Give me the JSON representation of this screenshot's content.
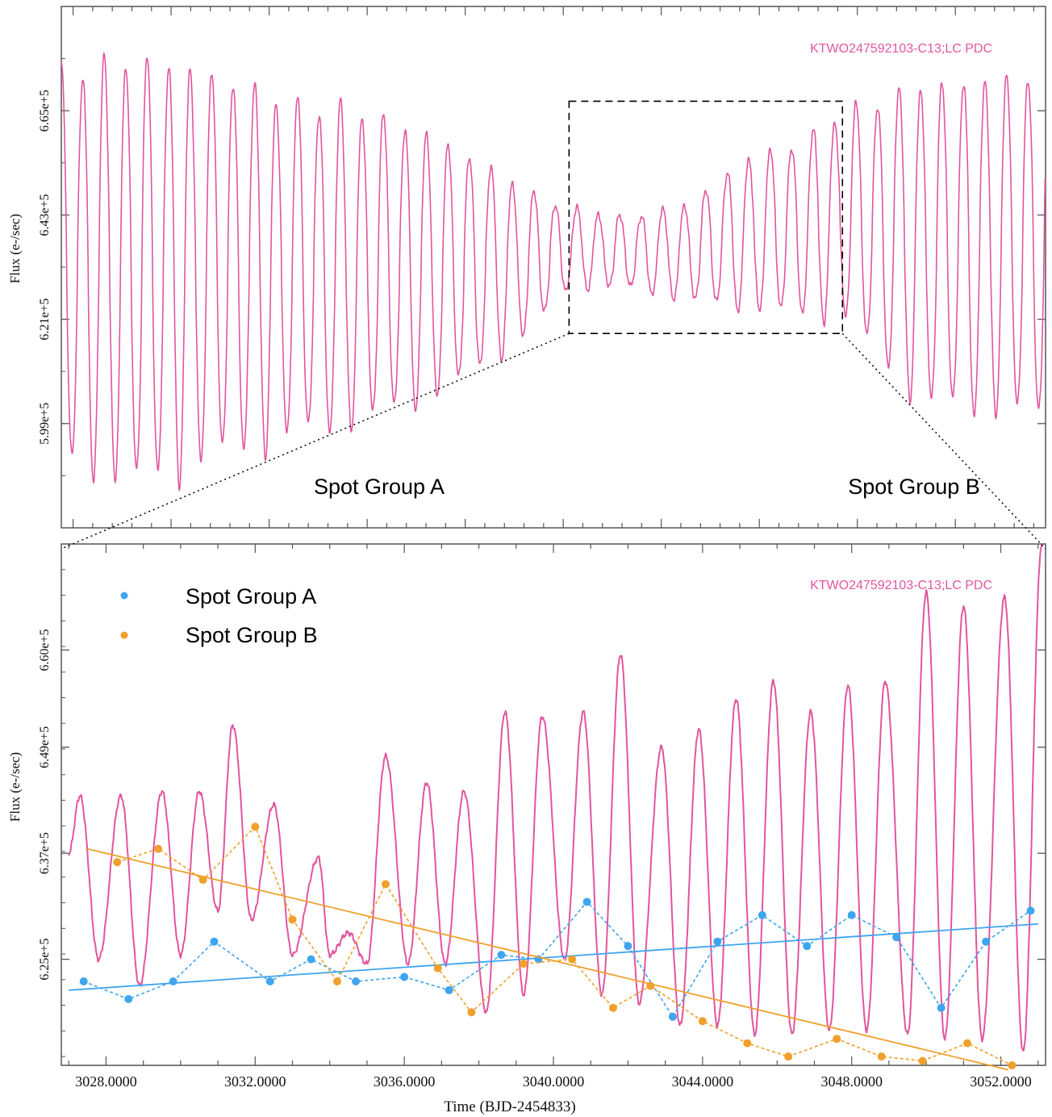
{
  "colors": {
    "lightcurve": "#e2559f",
    "group_a": "#3fa5ef",
    "group_b": "#f0a02c",
    "frame": "#555555",
    "guide": "#000000"
  },
  "top_panel": {
    "label": "KTWO247592103-C13;LC PDC",
    "ylabel": "Flux (e-/sec)",
    "yticks": [
      "6.65e+5",
      "6.43e+5",
      "6.21e+5",
      "5.99e+5"
    ],
    "annot_a": "Spot Group A",
    "annot_b": "Spot Group B"
  },
  "chart_data": [
    {
      "type": "line",
      "panel": "top",
      "title": "KTWO247592103-C13;LC PDC",
      "ylabel": "Flux (e-/sec)",
      "xlim": [
        3027.0,
        3052.2
      ],
      "ylim": [
        577000,
        687000
      ],
      "yticks": [
        665000,
        643000,
        621000,
        599000
      ],
      "annotations": [
        "Spot Group A",
        "Spot Group B"
      ],
      "series": [
        {
          "period": 0.55,
          "phase_offset": 3027.0,
          "envelope": [
            {
              "x": 3027.0,
              "peak": 676000,
              "trough": 587000
            },
            {
              "x": 3029.0,
              "peak": 680000,
              "trough": 582000
            },
            {
              "x": 3031.0,
              "peak": 676000,
              "trough": 588000
            },
            {
              "x": 3033.0,
              "peak": 669000,
              "trough": 593000
            },
            {
              "x": 3035.0,
              "peak": 667000,
              "trough": 597000
            },
            {
              "x": 3037.0,
              "peak": 660000,
              "trough": 604000
            },
            {
              "x": 3039.0,
              "peak": 649000,
              "trough": 617000
            },
            {
              "x": 3040.0,
              "peak": 645000,
              "trough": 627000
            },
            {
              "x": 3041.5,
              "peak": 643000,
              "trough": 627000
            },
            {
              "x": 3043.0,
              "peak": 646000,
              "trough": 624000
            },
            {
              "x": 3044.5,
              "peak": 656000,
              "trough": 622000
            },
            {
              "x": 3046.0,
              "peak": 660000,
              "trough": 620000
            },
            {
              "x": 3047.0,
              "peak": 666000,
              "trough": 620000
            },
            {
              "x": 3049.0,
              "peak": 673000,
              "trough": 600000
            },
            {
              "x": 3052.2,
              "peak": 676000,
              "trough": 597000
            }
          ]
        }
      ],
      "zoom_box": {
        "xlim": [
          3040.0,
          3047.0
        ],
        "ylim": [
          618000,
          667000
        ]
      }
    },
    {
      "type": "line",
      "panel": "bottom",
      "title": "KTWO247592103-C13;LC PDC",
      "xlabel": "Time (BJD-2454833)",
      "ylabel": "Flux (e-/sec)",
      "xlim": [
        3026.8,
        3053.2
      ],
      "ylim": [
        613000,
        672000
      ],
      "xticks": [
        3028,
        3032,
        3036,
        3040,
        3044,
        3048,
        3052
      ],
      "xtick_labels": [
        "3028.0000",
        "3032.0000",
        "3036.0000",
        "3040.0000",
        "3044.0000",
        "3048.0000",
        "3052.0000"
      ],
      "yticks": [
        660000,
        649000,
        637000,
        625000
      ],
      "ytick_labels": [
        "6.60e+5",
        "6.49e+5",
        "6.37e+5",
        "6.25e+5"
      ],
      "legend": {
        "placement": "top-left",
        "entries": [
          "Spot Group A",
          "Spot Group B"
        ]
      },
      "lightcurve": {
        "maxima": [
          {
            "x": 3027.3,
            "y": 643500
          },
          {
            "x": 3028.4,
            "y": 643500
          },
          {
            "x": 3029.5,
            "y": 644000
          },
          {
            "x": 3030.5,
            "y": 644000
          },
          {
            "x": 3031.4,
            "y": 651500
          },
          {
            "x": 3032.5,
            "y": 642500
          },
          {
            "x": 3033.7,
            "y": 636500
          },
          {
            "x": 3034.5,
            "y": 628000
          },
          {
            "x": 3035.5,
            "y": 648000
          },
          {
            "x": 3036.6,
            "y": 645000
          },
          {
            "x": 3037.6,
            "y": 644000
          },
          {
            "x": 3038.7,
            "y": 653000
          },
          {
            "x": 3039.7,
            "y": 652500
          },
          {
            "x": 3040.8,
            "y": 653000
          },
          {
            "x": 3041.8,
            "y": 659500
          },
          {
            "x": 3042.9,
            "y": 649000
          },
          {
            "x": 3043.9,
            "y": 651000
          },
          {
            "x": 3044.9,
            "y": 654500
          },
          {
            "x": 3045.9,
            "y": 656500
          },
          {
            "x": 3046.9,
            "y": 653000
          },
          {
            "x": 3047.9,
            "y": 656000
          },
          {
            "x": 3048.9,
            "y": 656500
          },
          {
            "x": 3050.0,
            "y": 666500
          },
          {
            "x": 3051.0,
            "y": 665000
          },
          {
            "x": 3052.1,
            "y": 666000
          },
          {
            "x": 3053.1,
            "y": 672000
          }
        ],
        "minima": [
          {
            "x": 3027.0,
            "y": 637000
          },
          {
            "x": 3027.8,
            "y": 625000
          },
          {
            "x": 3028.9,
            "y": 622000
          },
          {
            "x": 3030.0,
            "y": 625500
          },
          {
            "x": 3031.0,
            "y": 630500
          },
          {
            "x": 3031.9,
            "y": 629500
          },
          {
            "x": 3033.0,
            "y": 625500
          },
          {
            "x": 3034.0,
            "y": 625500
          },
          {
            "x": 3035.0,
            "y": 624500
          },
          {
            "x": 3036.1,
            "y": 624500
          },
          {
            "x": 3037.1,
            "y": 624500
          },
          {
            "x": 3038.2,
            "y": 619000
          },
          {
            "x": 3039.2,
            "y": 621000
          },
          {
            "x": 3040.3,
            "y": 625000
          },
          {
            "x": 3041.3,
            "y": 621000
          },
          {
            "x": 3042.3,
            "y": 620000
          },
          {
            "x": 3043.4,
            "y": 617500
          },
          {
            "x": 3044.4,
            "y": 617500
          },
          {
            "x": 3045.4,
            "y": 616500
          },
          {
            "x": 3046.4,
            "y": 616500
          },
          {
            "x": 3047.4,
            "y": 617000
          },
          {
            "x": 3048.4,
            "y": 617000
          },
          {
            "x": 3049.5,
            "y": 616500
          },
          {
            "x": 3050.5,
            "y": 616000
          },
          {
            "x": 3051.5,
            "y": 616000
          },
          {
            "x": 3052.6,
            "y": 614500
          }
        ]
      },
      "series": [
        {
          "name": "Spot Group A",
          "x": [
            3027.4,
            3028.6,
            3029.8,
            3030.9,
            3032.4,
            3033.5,
            3034.7,
            3036.0,
            3037.2,
            3038.6,
            3039.6,
            3040.9,
            3042.0,
            3043.2,
            3044.4,
            3045.6,
            3046.8,
            3048.0,
            3049.2,
            3050.4,
            3051.6,
            3052.8
          ],
          "y": [
            622500,
            620500,
            622500,
            627000,
            622500,
            625000,
            622500,
            623000,
            621500,
            625500,
            625000,
            631500,
            626500,
            618500,
            627000,
            630000,
            626500,
            630000,
            627500,
            619500,
            627000,
            630500
          ],
          "trend": [
            [
              3027.0,
              621500
            ],
            [
              3053.0,
              629000
            ]
          ]
        },
        {
          "name": "Spot Group B",
          "x": [
            3028.3,
            3029.4,
            3030.6,
            3032.0,
            3033.0,
            3034.2,
            3035.5,
            3036.9,
            3037.8,
            3039.2,
            3040.5,
            3041.6,
            3042.6,
            3044.0,
            3045.2,
            3046.3,
            3047.6,
            3048.8,
            3049.9,
            3051.1,
            3052.3
          ],
          "y": [
            636000,
            637500,
            634000,
            640000,
            629500,
            622500,
            633500,
            624000,
            619000,
            624500,
            625000,
            619500,
            622000,
            618000,
            615500,
            614000,
            616000,
            614000,
            613500,
            615500,
            613000
          ],
          "trend": [
            [
              3027.5,
              637500
            ],
            [
              3052.2,
              612500
            ]
          ]
        }
      ]
    }
  ]
}
